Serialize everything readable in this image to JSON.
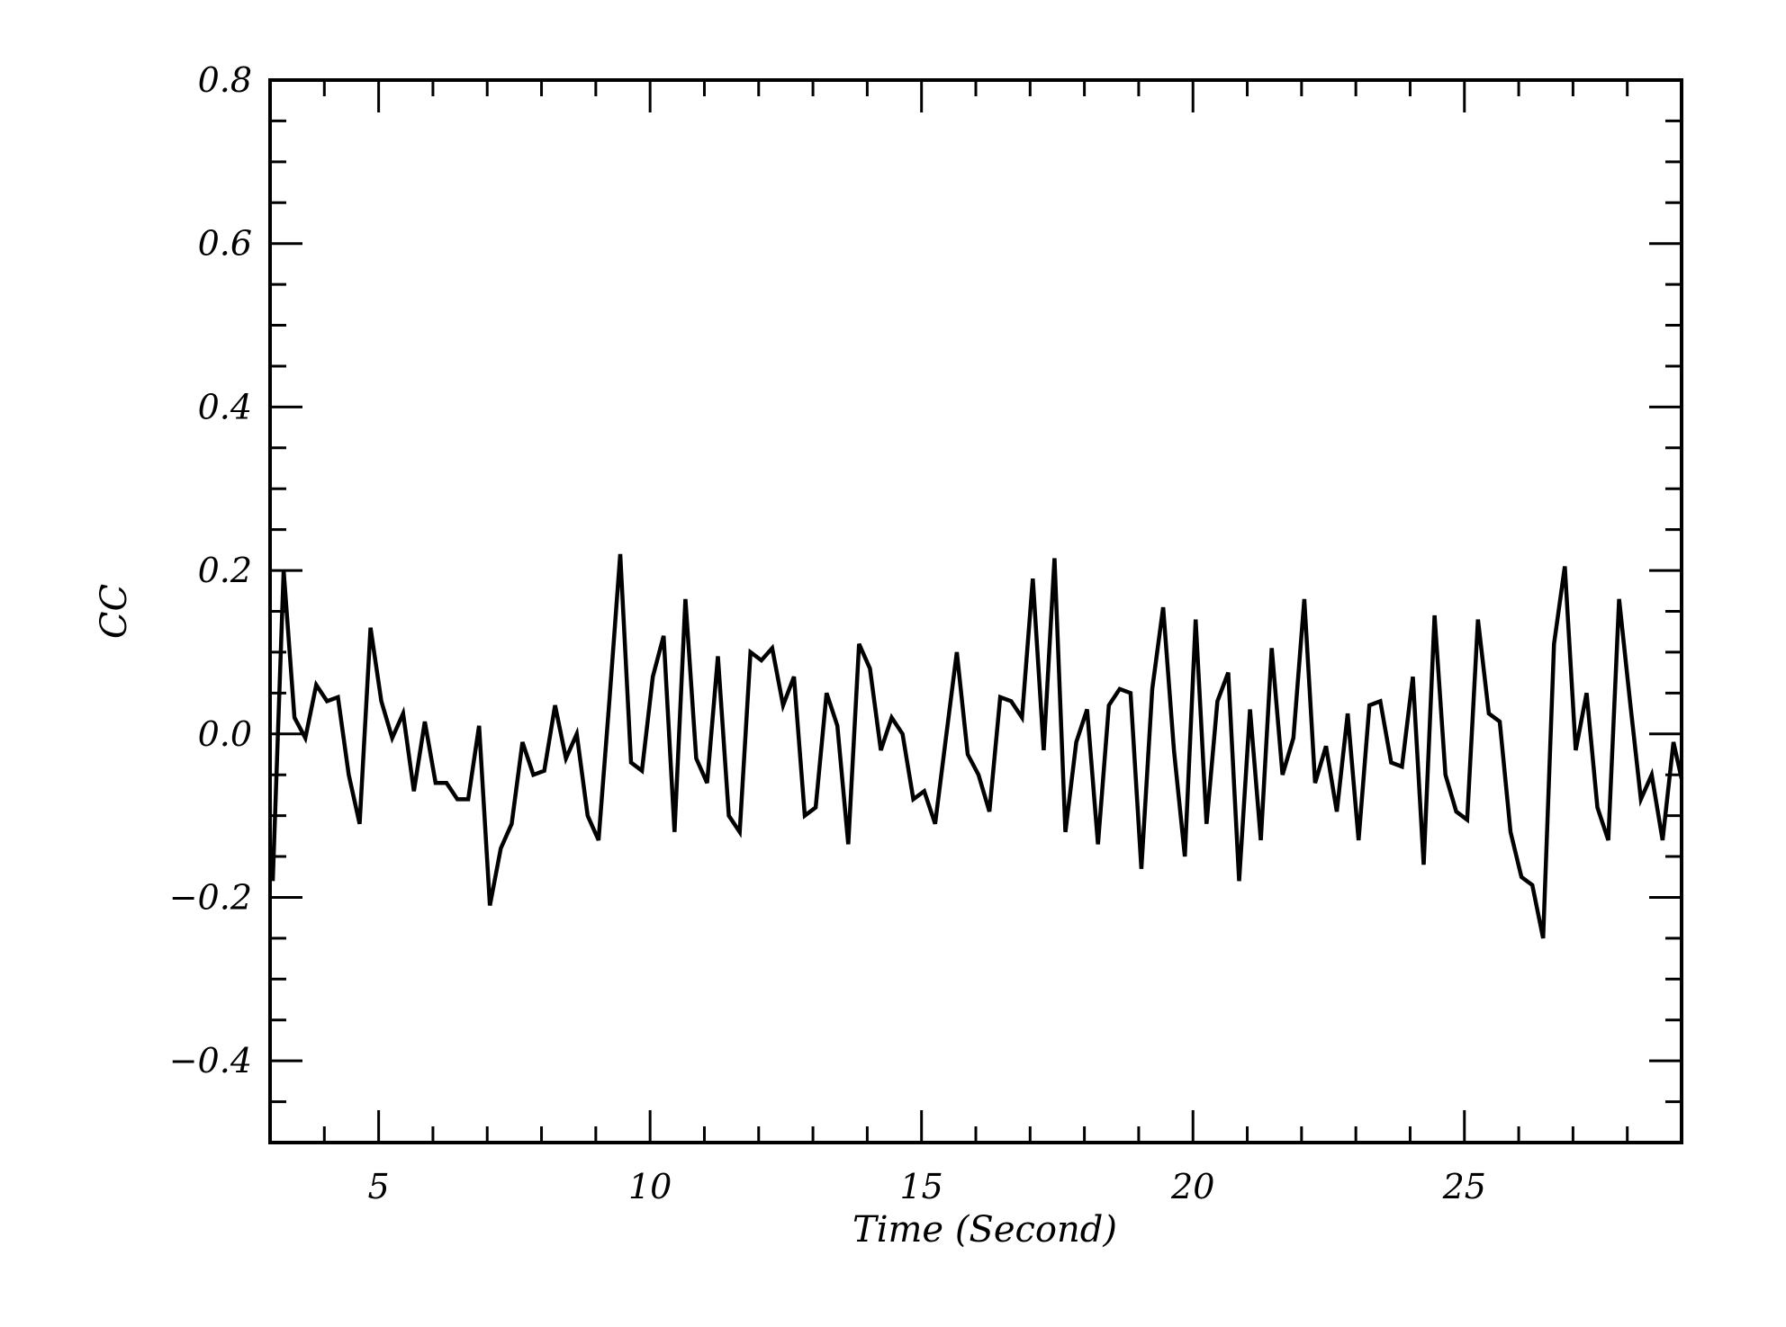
{
  "chart_data": {
    "type": "line",
    "xlabel": "Time (Second)",
    "ylabel": "CC",
    "xlim": [
      3.0,
      29.0
    ],
    "ylim": [
      -0.5,
      0.8
    ],
    "grid": false,
    "x_major_ticks": [
      5,
      10,
      15,
      20,
      25
    ],
    "x_tick_labels": [
      "5",
      "10",
      "15",
      "20",
      "25"
    ],
    "x_minor_step": 1,
    "y_major_ticks": [
      -0.4,
      -0.2,
      0.0,
      0.2,
      0.4,
      0.6,
      0.8
    ],
    "y_tick_labels": [
      "−0.4",
      "−0.2",
      "0.0",
      "0.2",
      "0.4",
      "0.6",
      "0.8"
    ],
    "y_minor_step": 0.05,
    "line_color": "#000000",
    "series": [
      {
        "x": [
          3.05,
          3.25,
          3.45,
          3.65,
          3.85,
          4.05,
          4.25,
          4.45,
          4.65,
          4.85,
          5.05,
          5.25,
          5.45,
          5.65,
          5.85,
          6.05,
          6.25,
          6.45,
          6.65,
          6.85,
          7.05,
          7.25,
          7.45,
          7.65,
          7.85,
          8.05,
          8.25,
          8.45,
          8.65,
          8.85,
          9.05,
          9.25,
          9.45,
          9.65,
          9.85,
          10.05,
          10.25,
          10.45,
          10.65,
          10.85,
          11.05,
          11.25,
          11.45,
          11.65,
          11.85,
          12.05,
          12.25,
          12.45,
          12.65,
          12.85,
          13.05,
          13.25,
          13.45,
          13.65,
          13.85,
          14.05,
          14.25,
          14.45,
          14.65,
          14.85,
          15.05,
          15.25,
          15.45,
          15.65,
          15.85,
          16.05,
          16.25,
          16.45,
          16.65,
          16.85,
          17.05,
          17.25,
          17.45,
          17.65,
          17.85,
          18.05,
          18.25,
          18.45,
          18.65,
          18.85,
          19.05,
          19.25,
          19.45,
          19.65,
          19.85,
          20.05,
          20.25,
          20.45,
          20.65,
          20.85,
          21.05,
          21.25,
          21.45,
          21.65,
          21.85,
          22.05,
          22.25,
          22.45,
          22.65,
          22.85,
          23.05,
          23.25,
          23.45,
          23.65,
          23.85,
          24.05,
          24.25,
          24.45,
          24.65,
          24.85,
          25.05,
          25.25,
          25.45,
          25.65,
          25.85,
          26.05,
          26.25,
          26.45,
          26.65,
          26.85,
          27.05,
          27.25,
          27.45,
          27.65,
          27.85,
          28.05,
          28.25,
          28.45,
          28.65,
          28.85,
          29.0
        ],
        "y": [
          -0.18,
          0.2,
          0.02,
          -0.005,
          0.06,
          0.04,
          0.045,
          -0.05,
          -0.11,
          0.13,
          0.04,
          -0.005,
          0.025,
          -0.07,
          0.015,
          -0.06,
          -0.06,
          -0.08,
          -0.08,
          0.01,
          -0.21,
          -0.14,
          -0.11,
          -0.01,
          -0.05,
          -0.045,
          0.035,
          -0.03,
          0.0,
          -0.1,
          -0.13,
          0.04,
          0.22,
          -0.035,
          -0.045,
          0.07,
          0.12,
          -0.12,
          0.165,
          -0.03,
          -0.06,
          0.095,
          -0.1,
          -0.12,
          0.1,
          0.09,
          0.105,
          0.035,
          0.07,
          -0.1,
          -0.09,
          0.05,
          0.01,
          -0.135,
          0.11,
          0.08,
          -0.02,
          0.02,
          0.0,
          -0.08,
          -0.07,
          -0.11,
          -0.005,
          0.1,
          -0.025,
          -0.05,
          -0.095,
          0.045,
          0.04,
          0.02,
          0.19,
          -0.02,
          0.215,
          -0.12,
          -0.01,
          0.03,
          -0.135,
          0.035,
          0.055,
          0.05,
          -0.165,
          0.055,
          0.155,
          -0.02,
          -0.15,
          0.14,
          -0.11,
          0.04,
          0.075,
          -0.18,
          0.03,
          -0.13,
          0.105,
          -0.05,
          -0.005,
          0.165,
          -0.06,
          -0.015,
          -0.095,
          0.025,
          -0.13,
          0.035,
          0.04,
          -0.035,
          -0.04,
          0.07,
          -0.16,
          0.145,
          -0.05,
          -0.095,
          -0.105,
          0.14,
          0.025,
          0.015,
          -0.12,
          -0.175,
          -0.185,
          -0.25,
          0.11,
          0.205,
          -0.02,
          0.05,
          -0.09,
          -0.13,
          0.165,
          0.04,
          -0.08,
          -0.05,
          -0.13,
          -0.01,
          -0.055
        ]
      }
    ]
  }
}
